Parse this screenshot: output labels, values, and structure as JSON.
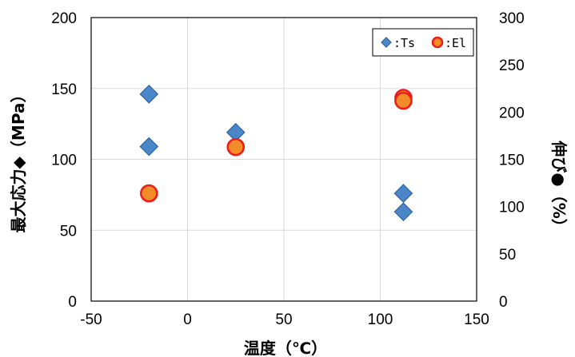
{
  "chart_data": {
    "type": "scatter",
    "title": "",
    "xlabel": "温度（℃）",
    "ylabel": "最大応力◆（MPa）",
    "y2label": "伸び●（%）",
    "xlim": [
      -50,
      150
    ],
    "ylim": [
      0,
      200
    ],
    "y2lim": [
      0,
      300
    ],
    "xticks": [
      "-50",
      "0",
      "50",
      "100",
      "150"
    ],
    "yticks": [
      "0",
      "50",
      "100",
      "150",
      "200"
    ],
    "y2ticks": [
      "0",
      "50",
      "100",
      "150",
      "200",
      "250",
      "300"
    ],
    "grid": true,
    "legend_position": "top-right",
    "series": [
      {
        "name": "Ts",
        "legend_label": "◆:Ts",
        "axis": "left",
        "marker": "diamond",
        "color": "#4A86C8",
        "edge": "#2E63A0",
        "points": [
          {
            "x": -20,
            "y": 146
          },
          {
            "x": -20,
            "y": 109
          },
          {
            "x": 25,
            "y": 119
          },
          {
            "x": 112,
            "y": 76
          },
          {
            "x": 112,
            "y": 63
          }
        ]
      },
      {
        "name": "El",
        "legend_label": "●:El",
        "axis": "right",
        "marker": "circle",
        "color": "#F28C28",
        "edge": "#EE1C1C",
        "points": [
          {
            "x": -20,
            "y": 114
          },
          {
            "x": 25,
            "y": 163
          },
          {
            "x": 112,
            "y": 215
          },
          {
            "x": 112,
            "y": 212
          }
        ]
      }
    ]
  }
}
